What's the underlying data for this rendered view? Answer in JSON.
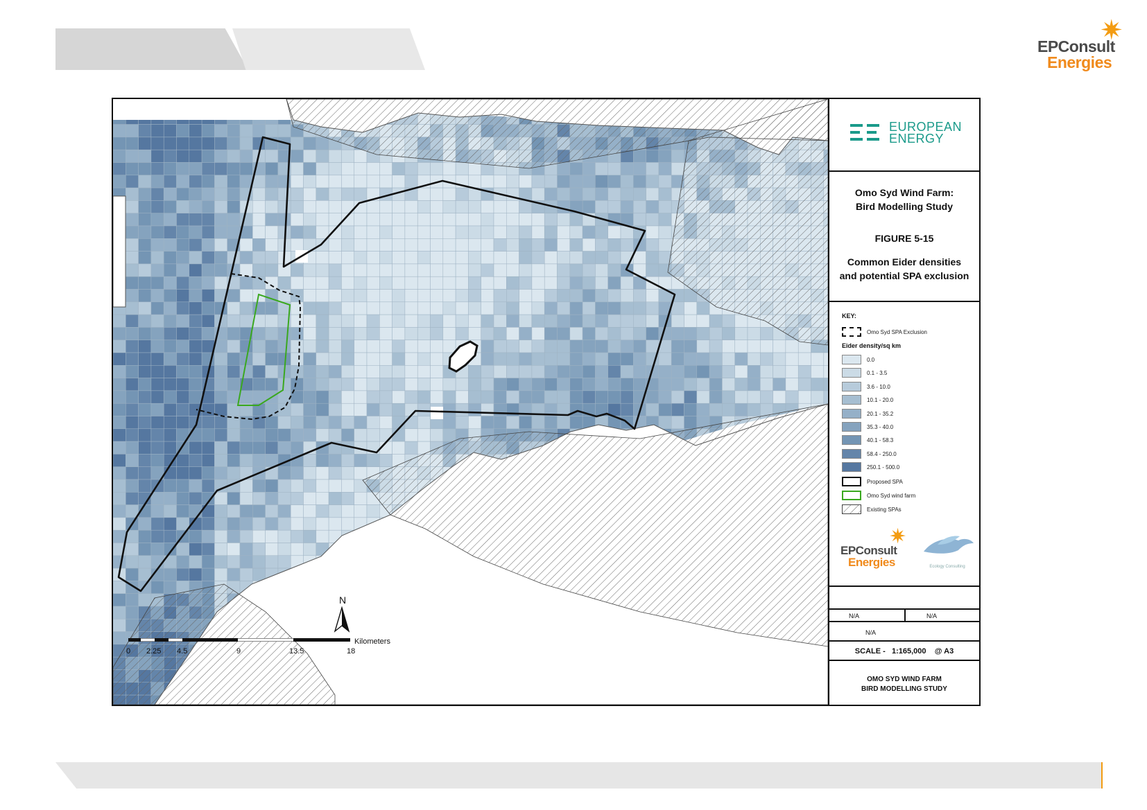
{
  "header": {
    "logo_line1": "EPConsult",
    "logo_line2": "Energies"
  },
  "client_logo": {
    "line1": "EUROPEAN",
    "line2": "ENERGY",
    "color": "#1a9a8a"
  },
  "title": {
    "project_line1": "Omo Syd Wind Farm:",
    "project_line2": "Bird Modelling Study",
    "figure_number": "FIGURE 5-15",
    "figure_line1": "Common Eider densities",
    "figure_line2": "and potential SPA exclusion"
  },
  "key": {
    "title": "KEY:",
    "exclusion_label": "Omo Syd SPA Exclusion",
    "density_title": "Eider density/sq km",
    "density_classes": [
      {
        "label": "0.0",
        "color": "#dbe7ef"
      },
      {
        "label": "0.1 - 3.5",
        "color": "#cbdbe6"
      },
      {
        "label": "3.6 - 10.0",
        "color": "#b7cbdb"
      },
      {
        "label": "10.1 - 20.0",
        "color": "#a6bed1"
      },
      {
        "label": "20.1 - 35.2",
        "color": "#95b0c8"
      },
      {
        "label": "35.3 - 40.0",
        "color": "#85a3be"
      },
      {
        "label": "40.1 - 58.3",
        "color": "#7495b4"
      },
      {
        "label": "58.4 - 250.0",
        "color": "#6485aa"
      },
      {
        "label": "250.1 - 500.0",
        "color": "#5577a0"
      }
    ],
    "proposed_spa_label": "Proposed SPA",
    "wind_farm_label": "Omo Syd wind farm",
    "existing_spa_label": "Existing SPAs"
  },
  "panel_logos": {
    "ep_line1": "EPConsult",
    "ep_line2": "Energies",
    "ecology_label": "Ecology Consulting"
  },
  "info": {
    "field1_value": "N/A",
    "field2_value": "N/A",
    "field3_value": "N/A",
    "scale_label": "SCALE -",
    "scale_value": "1:165,000",
    "paper_size": "@ A3",
    "study_line1": "OMO SYD WIND FARM",
    "study_line2": "BIRD MODELLING STUDY"
  },
  "map": {
    "north_label": "N",
    "scale_unit": "Kilometers",
    "scale_ticks": [
      "0",
      "2.25",
      "4.5",
      "9",
      "13.5",
      "18"
    ],
    "colors": {
      "land": "#ffffff",
      "coast": "#555555",
      "proposed_spa": "#111111",
      "wind_farm": "#3aa81e",
      "hatch": "#666666"
    }
  }
}
